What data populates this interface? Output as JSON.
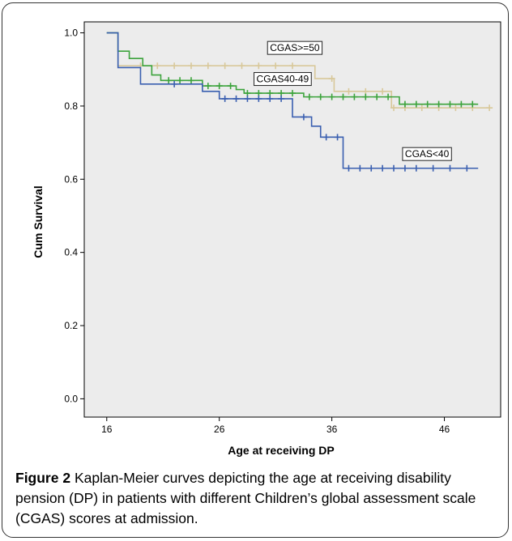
{
  "figure": {
    "caption_label": "Figure 2",
    "caption_text": " Kaplan-Meier curves depicting the age at receiving disability pension (DP) in patients with different Children’s global assessment scale (CGAS) scores at admission."
  },
  "chart_data": {
    "type": "line",
    "step": true,
    "xlabel": "Age at receiving DP",
    "ylabel": "Cum Survival",
    "xlim": [
      14,
      51
    ],
    "ylim": [
      -0.05,
      1.03
    ],
    "xticks": [
      16,
      26,
      36,
      46
    ],
    "yticks": [
      0.0,
      0.2,
      0.4,
      0.6,
      0.8,
      1.0
    ],
    "ytick_labels": [
      "0.0",
      "0.2",
      "0.4",
      "0.6",
      "0.8",
      "1.0"
    ],
    "grid": false,
    "plot_background": "#ececec",
    "series": [
      {
        "name": "CGAS>=50",
        "color": "#d8c89a",
        "label_at": [
          30.5,
          0.95
        ],
        "steps": [
          [
            16,
            1.0
          ],
          [
            17,
            0.91
          ],
          [
            34.5,
            0.875
          ],
          [
            36.2,
            0.84
          ],
          [
            41.3,
            0.795
          ],
          [
            50,
            0.795
          ]
        ],
        "censored": [
          [
            19,
            0.91
          ],
          [
            20.5,
            0.91
          ],
          [
            22,
            0.91
          ],
          [
            23.5,
            0.91
          ],
          [
            25,
            0.91
          ],
          [
            26.5,
            0.91
          ],
          [
            28,
            0.91
          ],
          [
            29.5,
            0.91
          ],
          [
            31,
            0.91
          ],
          [
            32.5,
            0.91
          ],
          [
            36,
            0.875
          ],
          [
            37.5,
            0.84
          ],
          [
            39,
            0.84
          ],
          [
            40.5,
            0.84
          ],
          [
            41.5,
            0.795
          ],
          [
            42.5,
            0.795
          ],
          [
            44,
            0.795
          ],
          [
            45.5,
            0.795
          ],
          [
            47,
            0.795
          ],
          [
            48.5,
            0.795
          ],
          [
            50,
            0.795
          ]
        ]
      },
      {
        "name": "CGAS40-49",
        "color": "#3ca33c",
        "label_at": [
          29.3,
          0.865
        ],
        "steps": [
          [
            16,
            1.0
          ],
          [
            17,
            0.95
          ],
          [
            18,
            0.93
          ],
          [
            19.2,
            0.91
          ],
          [
            20,
            0.885
          ],
          [
            20.8,
            0.87
          ],
          [
            24.5,
            0.855
          ],
          [
            27.5,
            0.845
          ],
          [
            28.2,
            0.835
          ],
          [
            33.5,
            0.825
          ],
          [
            42,
            0.805
          ],
          [
            49,
            0.805
          ]
        ],
        "censored": [
          [
            21.5,
            0.87
          ],
          [
            22.5,
            0.87
          ],
          [
            23.5,
            0.87
          ],
          [
            25,
            0.855
          ],
          [
            26,
            0.855
          ],
          [
            27,
            0.855
          ],
          [
            28.5,
            0.835
          ],
          [
            29.5,
            0.835
          ],
          [
            30.5,
            0.835
          ],
          [
            31.5,
            0.835
          ],
          [
            32.5,
            0.835
          ],
          [
            34,
            0.825
          ],
          [
            35,
            0.825
          ],
          [
            36,
            0.825
          ],
          [
            37,
            0.825
          ],
          [
            38,
            0.825
          ],
          [
            39,
            0.825
          ],
          [
            40,
            0.825
          ],
          [
            41,
            0.825
          ],
          [
            42.5,
            0.805
          ],
          [
            43.5,
            0.805
          ],
          [
            44.5,
            0.805
          ],
          [
            45.5,
            0.805
          ],
          [
            46.5,
            0.805
          ],
          [
            47.5,
            0.805
          ],
          [
            48.5,
            0.805
          ]
        ]
      },
      {
        "name": "CGAS<40",
        "color": "#3a5fb0",
        "label_at": [
          42.5,
          0.66
        ],
        "steps": [
          [
            16,
            1.0
          ],
          [
            17,
            0.905
          ],
          [
            19,
            0.86
          ],
          [
            24.5,
            0.84
          ],
          [
            26,
            0.82
          ],
          [
            32.5,
            0.77
          ],
          [
            34.2,
            0.745
          ],
          [
            35,
            0.715
          ],
          [
            37,
            0.63
          ],
          [
            49,
            0.63
          ]
        ],
        "censored": [
          [
            22,
            0.86
          ],
          [
            26.5,
            0.82
          ],
          [
            27.5,
            0.82
          ],
          [
            28.5,
            0.82
          ],
          [
            29.5,
            0.82
          ],
          [
            30.5,
            0.82
          ],
          [
            31.5,
            0.82
          ],
          [
            33.5,
            0.77
          ],
          [
            35.5,
            0.715
          ],
          [
            36.5,
            0.715
          ],
          [
            37.5,
            0.63
          ],
          [
            38.5,
            0.63
          ],
          [
            39.5,
            0.63
          ],
          [
            40.5,
            0.63
          ],
          [
            41.5,
            0.63
          ],
          [
            42.5,
            0.63
          ],
          [
            43.5,
            0.63
          ],
          [
            45,
            0.63
          ],
          [
            46.5,
            0.63
          ],
          [
            48,
            0.63
          ]
        ]
      }
    ]
  }
}
